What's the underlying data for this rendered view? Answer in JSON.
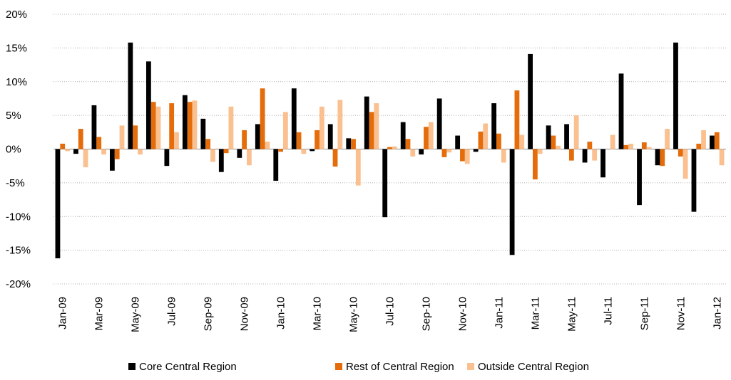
{
  "chart_data": {
    "type": "bar",
    "categories": [
      "Jan-09",
      null,
      "Mar-09",
      null,
      "May-09",
      null,
      "Jul-09",
      null,
      "Sep-09",
      null,
      "Nov-09",
      null,
      "Jan-10",
      null,
      "Mar-10",
      null,
      "May-10",
      null,
      "Jul-10",
      null,
      "Sep-10",
      null,
      "Nov-10",
      null,
      "Jan-11",
      null,
      "Mar-11",
      null,
      "May-11",
      null,
      "Jul-11",
      null,
      "Sep-11",
      null,
      "Nov-11",
      null,
      "Jan-12"
    ],
    "series": [
      {
        "name": "Core Central Region",
        "color": "#000000",
        "values": [
          -16.2,
          -0.7,
          6.5,
          -3.2,
          15.8,
          13.0,
          -2.5,
          8.0,
          4.5,
          -3.4,
          -1.3,
          3.7,
          -4.7,
          9.0,
          -0.3,
          3.7,
          1.6,
          7.8,
          -10.1,
          4.0,
          -0.8,
          7.5,
          2.0,
          -0.4,
          6.8,
          -15.7,
          14.1,
          3.5,
          3.7,
          -2.0,
          -4.2,
          11.2,
          -8.3,
          -2.4,
          15.8,
          -9.3,
          2.0
        ]
      },
      {
        "name": "Rest of Central Region",
        "color": "#e46c0a",
        "values": [
          0.8,
          3.0,
          1.8,
          -1.5,
          3.5,
          7.0,
          6.8,
          7.0,
          1.5,
          -0.6,
          2.8,
          9.0,
          -0.4,
          2.5,
          2.8,
          -2.6,
          1.5,
          5.5,
          0.3,
          1.5,
          3.3,
          -1.2,
          -1.8,
          2.6,
          2.3,
          8.7,
          -4.5,
          2.0,
          -1.7,
          1.1,
          0,
          0.6,
          1.0,
          -2.5,
          -1.1,
          0.8,
          2.5
        ]
      },
      {
        "name": "Outside Central Region",
        "color": "#fac090",
        "values": [
          -0.3,
          -2.7,
          -0.8,
          3.5,
          -0.8,
          6.3,
          2.5,
          7.2,
          -1.9,
          6.3,
          -2.4,
          1.1,
          5.5,
          -0.7,
          6.3,
          7.3,
          -5.4,
          6.8,
          0.4,
          -1.1,
          4.0,
          -0.5,
          -2.2,
          3.8,
          -2.0,
          2.1,
          -0.7,
          0.5,
          5.0,
          -1.7,
          2.1,
          0.8,
          0.3,
          3.0,
          -4.4,
          2.8,
          -2.4
        ]
      }
    ],
    "ylim": [
      -20,
      20
    ],
    "yticks": [
      {
        "value": -20,
        "label": "-20%"
      },
      {
        "value": -15,
        "label": "-15%"
      },
      {
        "value": -10,
        "label": "-10%"
      },
      {
        "value": -5,
        "label": "-5%"
      },
      {
        "value": 0,
        "label": "0%"
      },
      {
        "value": 5,
        "label": "5%"
      },
      {
        "value": 10,
        "label": "10%"
      },
      {
        "value": 15,
        "label": "15%"
      },
      {
        "value": 20,
        "label": "20%"
      }
    ],
    "grid": true,
    "legend": "bottom"
  }
}
